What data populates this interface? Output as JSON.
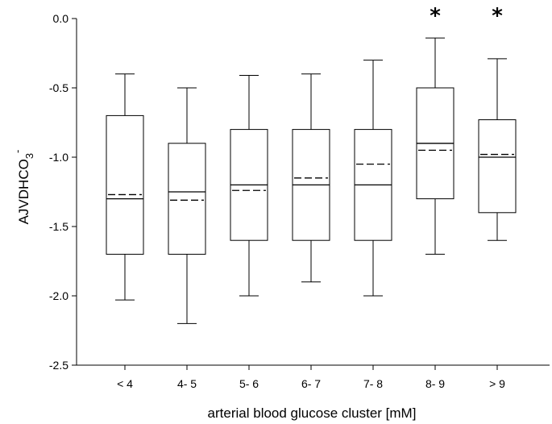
{
  "chart_data": {
    "type": "box",
    "title": "",
    "xlabel": "arterial blood glucose cluster [mM]",
    "ylabel_main": "AJVDHCO",
    "ylabel_sub": "3",
    "ylabel_sup": "-",
    "ylim": [
      -2.5,
      0.0
    ],
    "yticks": [
      0.0,
      -0.5,
      -1.0,
      -1.5,
      -2.0,
      -2.5
    ],
    "ytick_labels": [
      "0.0",
      "-0.5",
      "-1.0",
      "-1.5",
      "-2.0",
      "-2.5"
    ],
    "grid": false,
    "categories": [
      "< 4",
      "4- 5",
      "5- 6",
      "6- 7",
      "7- 8",
      "8- 9",
      "> 9"
    ],
    "boxes": [
      {
        "whisker_high": -0.4,
        "q3": -0.7,
        "median": -1.3,
        "mean": -1.27,
        "q1": -1.7,
        "whisker_low": -2.03,
        "significant": false
      },
      {
        "whisker_high": -0.5,
        "q3": -0.9,
        "median": -1.25,
        "mean": -1.31,
        "q1": -1.7,
        "whisker_low": -2.2,
        "significant": false
      },
      {
        "whisker_high": -0.41,
        "q3": -0.8,
        "median": -1.2,
        "mean": -1.24,
        "q1": -1.6,
        "whisker_low": -2.0,
        "significant": false
      },
      {
        "whisker_high": -0.4,
        "q3": -0.8,
        "median": -1.2,
        "mean": -1.15,
        "q1": -1.6,
        "whisker_low": -1.9,
        "significant": false
      },
      {
        "whisker_high": -0.3,
        "q3": -0.8,
        "median": -1.2,
        "mean": -1.05,
        "q1": -1.6,
        "whisker_low": -2.0,
        "significant": false
      },
      {
        "whisker_high": -0.14,
        "q3": -0.5,
        "median": -0.9,
        "mean": -0.95,
        "q1": -1.3,
        "whisker_low": -1.7,
        "significant": true
      },
      {
        "whisker_high": -0.29,
        "q3": -0.73,
        "median": -1.0,
        "mean": -0.98,
        "q1": -1.4,
        "whisker_low": -1.6,
        "significant": true
      }
    ],
    "significance_marker": "*"
  }
}
